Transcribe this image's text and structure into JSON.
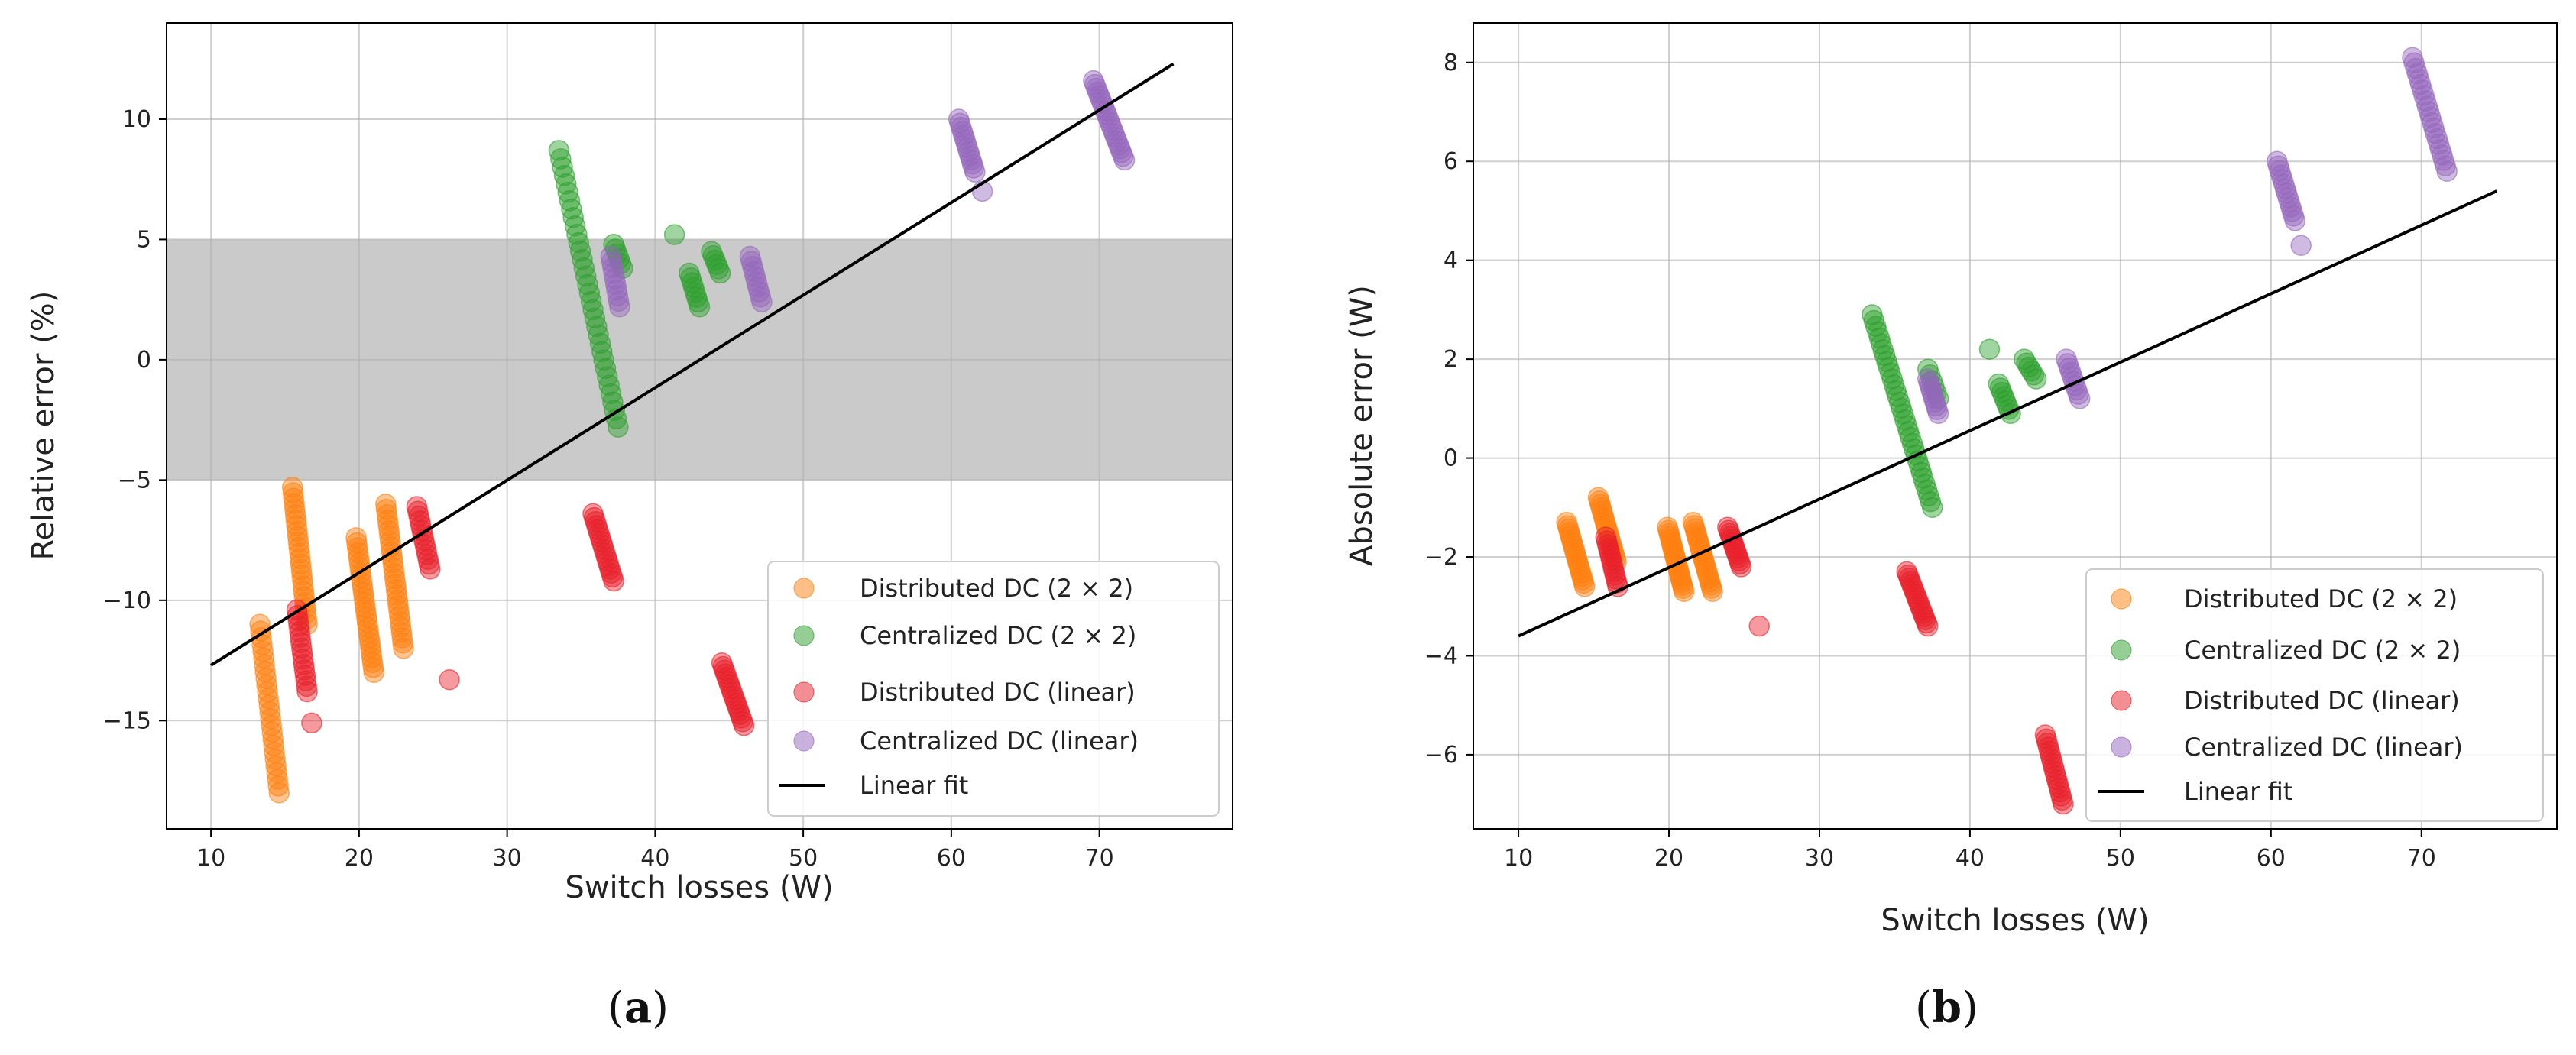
{
  "chart_data": [
    {
      "type": "scatter",
      "panel_label": "a",
      "xlabel": "Switch losses (W)",
      "ylabel": "Relative error (%)",
      "xlim": [
        7,
        79
      ],
      "ylim": [
        -19.5,
        14
      ],
      "xticks": [
        10,
        20,
        30,
        40,
        50,
        60,
        70
      ],
      "yticks": [
        -15,
        -10,
        -5,
        0,
        5,
        10
      ],
      "grid": true,
      "legend_position": "bottom-right",
      "shaded_band": [
        -5,
        5
      ],
      "fit": {
        "name": "Linear fit",
        "x": [
          10,
          75
        ],
        "y": [
          -12.7,
          12.3
        ],
        "color": "#000000"
      },
      "series": [
        {
          "name": "Distributed DC (2 × 2)",
          "color": "#ff7f0e",
          "clusters": [
            {
              "x": [
                13.3,
                14.6
              ],
              "y": [
                -11.0,
                -18.0
              ],
              "n": 26
            },
            {
              "x": [
                15.5,
                16.5
              ],
              "y": [
                -5.3,
                -11.0
              ],
              "n": 26
            },
            {
              "x": [
                19.8,
                21.0
              ],
              "y": [
                -7.4,
                -13.0
              ],
              "n": 28
            },
            {
              "x": [
                21.8,
                23.0
              ],
              "y": [
                -6.0,
                -12.0
              ],
              "n": 28
            }
          ]
        },
        {
          "name": "Centralized DC (2 × 2)",
          "color": "#2ca02c",
          "clusters": [
            {
              "x": [
                33.5,
                37.5
              ],
              "y": [
                8.7,
                -2.8
              ],
              "n": 34
            },
            {
              "x": [
                37.2,
                37.8
              ],
              "y": [
                4.8,
                3.8
              ],
              "n": 6
            },
            {
              "x": [
                42.3,
                43.0
              ],
              "y": [
                3.6,
                2.2
              ],
              "n": 8
            },
            {
              "x": [
                43.8,
                44.4
              ],
              "y": [
                4.5,
                3.6
              ],
              "n": 6
            },
            {
              "x": [
                41.3,
                41.3
              ],
              "y": [
                5.2,
                5.2
              ],
              "n": 1
            }
          ]
        },
        {
          "name": "Distributed DC (linear)",
          "color": "#e8202a",
          "clusters": [
            {
              "x": [
                15.8,
                16.5
              ],
              "y": [
                -10.4,
                -13.8
              ],
              "n": 16
            },
            {
              "x": [
                23.9,
                24.8
              ],
              "y": [
                -6.1,
                -8.7
              ],
              "n": 14
            },
            {
              "x": [
                35.8,
                37.2
              ],
              "y": [
                -6.4,
                -9.2
              ],
              "n": 18
            },
            {
              "x": [
                44.5,
                46.0
              ],
              "y": [
                -12.6,
                -15.2
              ],
              "n": 18
            },
            {
              "x": [
                16.8,
                16.8
              ],
              "y": [
                -15.1,
                -15.1
              ],
              "n": 1
            },
            {
              "x": [
                26.1,
                26.1
              ],
              "y": [
                -13.3,
                -13.3
              ],
              "n": 1
            }
          ]
        },
        {
          "name": "Centralized DC (linear)",
          "color": "#9467bd",
          "clusters": [
            {
              "x": [
                37.0,
                37.6
              ],
              "y": [
                4.3,
                2.2
              ],
              "n": 10
            },
            {
              "x": [
                46.4,
                47.2
              ],
              "y": [
                4.3,
                2.4
              ],
              "n": 10
            },
            {
              "x": [
                60.5,
                61.6
              ],
              "y": [
                10.0,
                7.8
              ],
              "n": 14
            },
            {
              "x": [
                62.1,
                62.1
              ],
              "y": [
                7.0,
                7.0
              ],
              "n": 1
            },
            {
              "x": [
                69.6,
                71.7
              ],
              "y": [
                11.6,
                8.3
              ],
              "n": 22
            }
          ]
        }
      ]
    },
    {
      "type": "scatter",
      "panel_label": "b",
      "xlabel": "Switch losses (W)",
      "ylabel": "Absolute error (W)",
      "xlim": [
        7,
        79
      ],
      "ylim": [
        -7.5,
        8.8
      ],
      "xticks": [
        10,
        20,
        30,
        40,
        50,
        60,
        70
      ],
      "yticks": [
        -6,
        -4,
        -2,
        0,
        2,
        4,
        6,
        8
      ],
      "grid": true,
      "legend_position": "bottom-right",
      "fit": {
        "name": "Linear fit",
        "x": [
          10,
          75
        ],
        "y": [
          -3.6,
          5.4
        ],
        "color": "#000000"
      },
      "series": [
        {
          "name": "Distributed DC (2 × 2)",
          "color": "#ff7f0e",
          "clusters": [
            {
              "x": [
                13.2,
                14.4
              ],
              "y": [
                -1.3,
                -2.6
              ],
              "n": 20
            },
            {
              "x": [
                15.3,
                16.5
              ],
              "y": [
                -0.8,
                -2.1
              ],
              "n": 20
            },
            {
              "x": [
                19.9,
                21.0
              ],
              "y": [
                -1.4,
                -2.7
              ],
              "n": 22
            },
            {
              "x": [
                21.6,
                22.9
              ],
              "y": [
                -1.3,
                -2.7
              ],
              "n": 22
            }
          ]
        },
        {
          "name": "Centralized DC (2 × 2)",
          "color": "#2ca02c",
          "clusters": [
            {
              "x": [
                33.5,
                37.5
              ],
              "y": [
                2.9,
                -1.0
              ],
              "n": 34
            },
            {
              "x": [
                37.2,
                37.9
              ],
              "y": [
                1.8,
                1.2
              ],
              "n": 6
            },
            {
              "x": [
                41.9,
                42.7
              ],
              "y": [
                1.5,
                0.9
              ],
              "n": 8
            },
            {
              "x": [
                43.6,
                44.4
              ],
              "y": [
                2.0,
                1.6
              ],
              "n": 6
            },
            {
              "x": [
                41.3,
                41.3
              ],
              "y": [
                2.2,
                2.2
              ],
              "n": 1
            }
          ]
        },
        {
          "name": "Distributed DC (linear)",
          "color": "#e8202a",
          "clusters": [
            {
              "x": [
                15.8,
                16.6
              ],
              "y": [
                -1.6,
                -2.6
              ],
              "n": 14
            },
            {
              "x": [
                23.9,
                24.8
              ],
              "y": [
                -1.4,
                -2.2
              ],
              "n": 14
            },
            {
              "x": [
                35.8,
                37.2
              ],
              "y": [
                -2.3,
                -3.4
              ],
              "n": 18
            },
            {
              "x": [
                45.0,
                46.2
              ],
              "y": [
                -5.6,
                -7.0
              ],
              "n": 18
            },
            {
              "x": [
                26.0,
                26.0
              ],
              "y": [
                -3.4,
                -3.4
              ],
              "n": 1
            }
          ]
        },
        {
          "name": "Centralized DC (linear)",
          "color": "#9467bd",
          "clusters": [
            {
              "x": [
                37.2,
                37.9
              ],
              "y": [
                1.6,
                0.9
              ],
              "n": 10
            },
            {
              "x": [
                46.4,
                47.3
              ],
              "y": [
                2.0,
                1.2
              ],
              "n": 10
            },
            {
              "x": [
                60.4,
                61.6
              ],
              "y": [
                6.0,
                4.8
              ],
              "n": 14
            },
            {
              "x": [
                62.0,
                62.0
              ],
              "y": [
                4.3,
                4.3
              ],
              "n": 1
            },
            {
              "x": [
                69.4,
                71.7
              ],
              "y": [
                8.1,
                5.8
              ],
              "n": 22
            }
          ]
        }
      ]
    }
  ]
}
